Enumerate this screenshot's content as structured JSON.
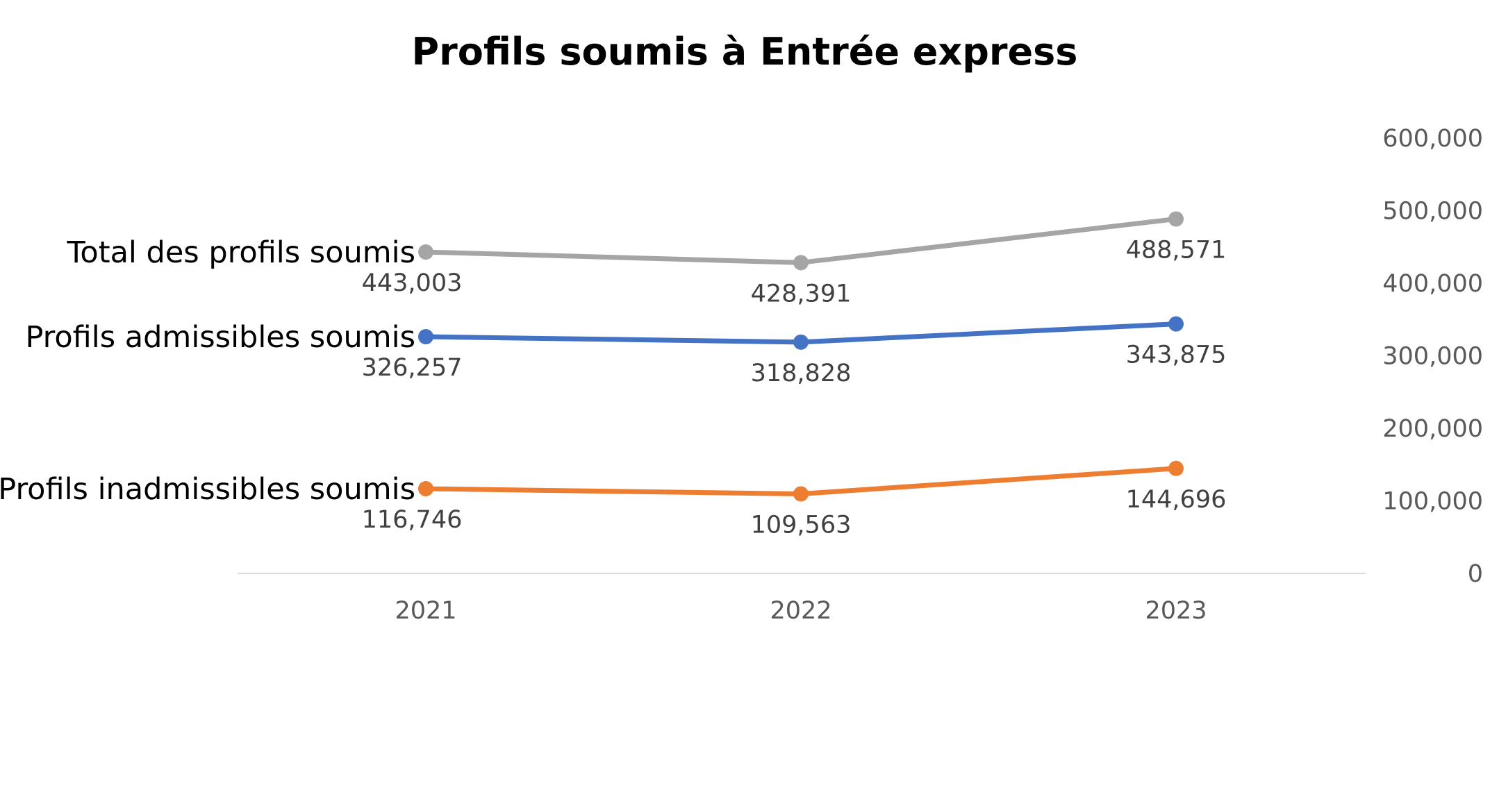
{
  "chart_data": {
    "type": "line",
    "title": "Profils soumis à Entrée express",
    "categories": [
      "2021",
      "2022",
      "2023"
    ],
    "series": [
      {
        "name": "Total des profils soumis",
        "values": [
          443003,
          428391,
          488571
        ],
        "labels": [
          "443,003",
          "428,391",
          "488,571"
        ],
        "color": "#A5A5A5"
      },
      {
        "name": "Profils admissibles soumis",
        "values": [
          326257,
          318828,
          343875
        ],
        "labels": [
          "326,257",
          "318,828",
          "343,875"
        ],
        "color": "#4472C4"
      },
      {
        "name": "Profils inadmissibles soumis",
        "values": [
          116746,
          109563,
          144696
        ],
        "labels": [
          "116,746",
          "109,563",
          "144,696"
        ],
        "color": "#ED7D31"
      }
    ],
    "y_ticks": [
      "0",
      "100,000",
      "200,000",
      "300,000",
      "400,000",
      "500,000",
      "600,000"
    ],
    "ylim": [
      0,
      600000
    ],
    "y_axis_position": "right",
    "grid": false,
    "legend": "none",
    "axis_line_color": "#D9D9D9"
  }
}
